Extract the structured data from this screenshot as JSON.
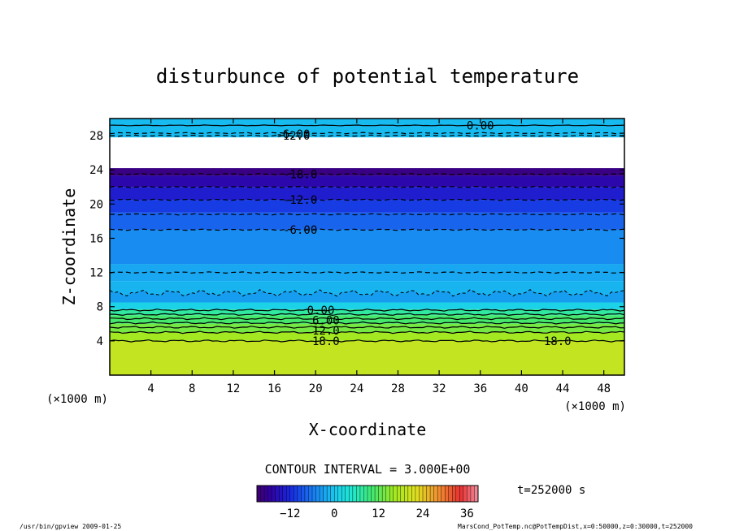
{
  "chart_data": {
    "type": "contour",
    "title": "disturbunce of potential temperature",
    "xlabel": "X-coordinate",
    "ylabel": "Z-coordinate",
    "x_unit": "(×1000 m)",
    "y_unit": "(×1000 m)",
    "xlim": [
      0,
      50
    ],
    "ylim": [
      0,
      30
    ],
    "x_ticks": [
      4,
      8,
      12,
      16,
      20,
      24,
      28,
      32,
      36,
      40,
      44,
      48
    ],
    "y_ticks": [
      4,
      8,
      12,
      16,
      20,
      24,
      28
    ],
    "contour_interval_text": "CONTOUR INTERVAL = 3.000E+00",
    "time_text": "t=252000 s",
    "colorbar": {
      "min": -21,
      "max": 39,
      "ticks": [
        -12,
        0,
        12,
        24,
        36
      ]
    },
    "fill_bands": [
      {
        "z0": 0.0,
        "z1": 4.0,
        "value": 19.5
      },
      {
        "z0": 4.0,
        "z1": 5.0,
        "value": 16.5
      },
      {
        "z0": 5.0,
        "z1": 6.0,
        "value": 13.5
      },
      {
        "z0": 6.0,
        "z1": 7.0,
        "value": 10.5
      },
      {
        "z0": 7.0,
        "z1": 7.7,
        "value": 7.5
      },
      {
        "z0": 7.7,
        "z1": 8.5,
        "value": 1.5
      },
      {
        "z0": 8.5,
        "z1": 11.0,
        "value": -1.5
      },
      {
        "z0": 11.0,
        "z1": 13.0,
        "value": -2.5
      },
      {
        "z0": 13.0,
        "z1": 17.0,
        "value": -4.5
      },
      {
        "z0": 17.0,
        "z1": 19.0,
        "value": -7.5
      },
      {
        "z0": 19.0,
        "z1": 20.5,
        "value": -10.5
      },
      {
        "z0": 20.5,
        "z1": 22.0,
        "value": -13.5
      },
      {
        "z0": 22.0,
        "z1": 23.3,
        "value": -16.5
      },
      {
        "z0": 23.3,
        "z1": 24.2,
        "value": -19.5
      },
      {
        "z0": 27.8,
        "z1": 30.0,
        "value": -1.0
      }
    ],
    "contour_lines": [
      {
        "z": 4.0,
        "value": 18,
        "dashed": false
      },
      {
        "z": 5.0,
        "value": 15,
        "dashed": false
      },
      {
        "z": 5.6,
        "value": 12,
        "dashed": false
      },
      {
        "z": 6.1,
        "value": 9,
        "dashed": false
      },
      {
        "z": 6.6,
        "value": 6,
        "dashed": false
      },
      {
        "z": 7.1,
        "value": 3,
        "dashed": false
      },
      {
        "z": 7.6,
        "value": 0,
        "dashed": false
      },
      {
        "z": 12.0,
        "value": -3,
        "dashed": true
      },
      {
        "z": 17.0,
        "value": -6,
        "dashed": true
      },
      {
        "z": 18.8,
        "value": -9,
        "dashed": true
      },
      {
        "z": 20.5,
        "value": -12,
        "dashed": true
      },
      {
        "z": 22.0,
        "value": -15,
        "dashed": true
      },
      {
        "z": 23.5,
        "value": -18,
        "dashed": true
      },
      {
        "z": 28.0,
        "value": -6,
        "dashed": true
      },
      {
        "z": 28.3,
        "value": -12,
        "dashed": true
      },
      {
        "z": 29.2,
        "value": 0,
        "dashed": false
      }
    ],
    "contour_labels": [
      {
        "text": "18.0",
        "x": 21,
        "z": 4.0
      },
      {
        "text": "18.0",
        "x": 43.5,
        "z": 4.0
      },
      {
        "text": "12.0",
        "x": 21,
        "z": 5.2
      },
      {
        "text": "6.00",
        "x": 21,
        "z": 6.4
      },
      {
        "text": "0.00",
        "x": 20.5,
        "z": 7.6
      },
      {
        "text": "-6.00",
        "x": 18.5,
        "z": 17.0
      },
      {
        "text": "-12.0",
        "x": 18.5,
        "z": 20.5
      },
      {
        "text": "-18.0",
        "x": 18.5,
        "z": 23.5
      },
      {
        "text": "-6.00",
        "x": 17.8,
        "z": 28.2
      },
      {
        "text": "-12.0",
        "x": 17.8,
        "z": 28.0
      },
      {
        "text": "0.00",
        "x": 36.0,
        "z": 29.2
      }
    ]
  },
  "footer": {
    "left": "/usr/bin/gpview   2009-01-25",
    "right": "MarsCond_PotTemp.nc@PotTempDist,x=0:50000,z=0:30000,t=252000"
  }
}
